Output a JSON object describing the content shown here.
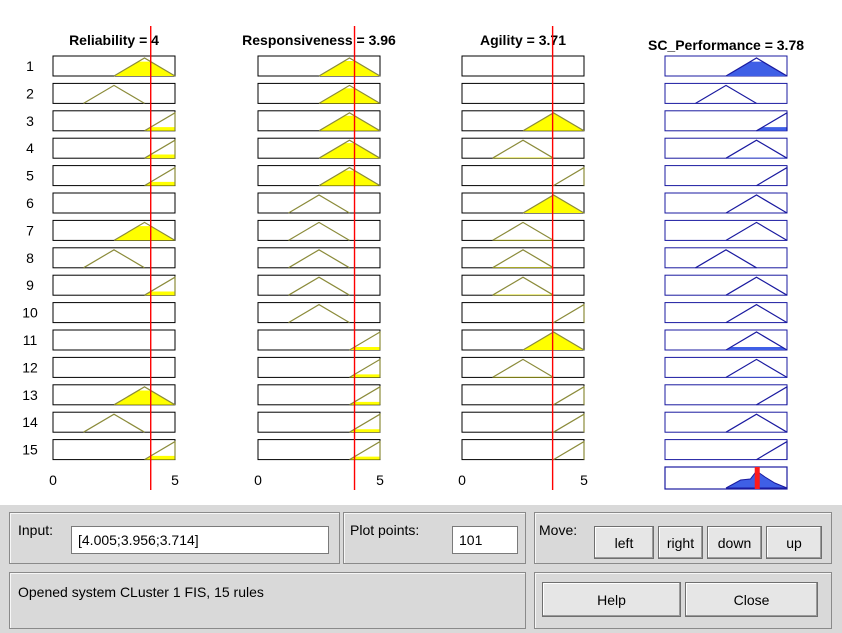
{
  "rule_viewer": {
    "variables": [
      {
        "kind": "input",
        "title": "Reliability = 4",
        "value": 4.005,
        "range": [
          0,
          5
        ],
        "ticks": [
          "0",
          "5"
        ]
      },
      {
        "kind": "input",
        "title": "Responsiveness = 3.96",
        "value": 3.956,
        "range": [
          0,
          5
        ],
        "ticks": [
          "0",
          "5"
        ]
      },
      {
        "kind": "input",
        "title": "Agility = 3.71",
        "value": 3.714,
        "range": [
          0,
          5
        ],
        "ticks": [
          "0",
          "5"
        ]
      },
      {
        "kind": "output",
        "title": "SC_Performance = 3.78",
        "value": 3.78,
        "range": [
          0,
          5
        ],
        "ticks": [
          "0",
          "5"
        ]
      }
    ],
    "membership_functions": {
      "low": [
        0.5,
        1.25,
        2.0,
        2.0
      ],
      "mid": [
        1.25,
        2.5,
        3.75,
        3.75
      ],
      "high": [
        2.5,
        3.75,
        5.0,
        5.0
      ],
      "vhigh": [
        3.75,
        5.0,
        5.0,
        5.0
      ]
    },
    "rules": [
      {
        "number": "1",
        "mfs": [
          "high",
          "high",
          "none",
          "high"
        ]
      },
      {
        "number": "2",
        "mfs": [
          "mid",
          "high",
          "none",
          "mid"
        ]
      },
      {
        "number": "3",
        "mfs": [
          "vhigh",
          "high",
          "high",
          "vhigh"
        ]
      },
      {
        "number": "4",
        "mfs": [
          "vhigh",
          "high",
          "mid",
          "high"
        ]
      },
      {
        "number": "5",
        "mfs": [
          "vhigh",
          "high",
          "vhigh",
          "vhigh"
        ]
      },
      {
        "number": "6",
        "mfs": [
          "none",
          "mid",
          "high",
          "high"
        ]
      },
      {
        "number": "7",
        "mfs": [
          "high",
          "mid",
          "mid",
          "high"
        ]
      },
      {
        "number": "8",
        "mfs": [
          "mid",
          "mid",
          "mid",
          "mid"
        ]
      },
      {
        "number": "9",
        "mfs": [
          "vhigh",
          "mid",
          "mid",
          "high"
        ]
      },
      {
        "number": "10",
        "mfs": [
          "none",
          "mid",
          "vhigh",
          "high"
        ]
      },
      {
        "number": "11",
        "mfs": [
          "none",
          "vhigh",
          "high",
          "high"
        ]
      },
      {
        "number": "12",
        "mfs": [
          "none",
          "vhigh",
          "mid",
          "high"
        ]
      },
      {
        "number": "13",
        "mfs": [
          "high",
          "vhigh",
          "vhigh",
          "vhigh"
        ]
      },
      {
        "number": "14",
        "mfs": [
          "mid",
          "vhigh",
          "vhigh",
          "high"
        ]
      },
      {
        "number": "15",
        "mfs": [
          "vhigh",
          "vhigh",
          "vhigh",
          "vhigh"
        ]
      }
    ],
    "colors": {
      "input_line": "#8b8b3a",
      "input_fill": "#ffff00",
      "output_line": "#1a1aa0",
      "output_fill": "#3f5fe6",
      "indicator": "#ff0000",
      "output_result": "#ff1a1a"
    }
  },
  "controls": {
    "input_label": "Input:",
    "input_value": "[4.005;3.956;3.714]",
    "plot_points_label": "Plot points:",
    "plot_points_value": "101",
    "move_label": "Move:",
    "buttons": {
      "left": "left",
      "right": "right",
      "down": "down",
      "up": "up",
      "help": "Help",
      "close": "Close"
    },
    "status_text": "Opened system CLuster 1 FIS, 15 rules"
  }
}
